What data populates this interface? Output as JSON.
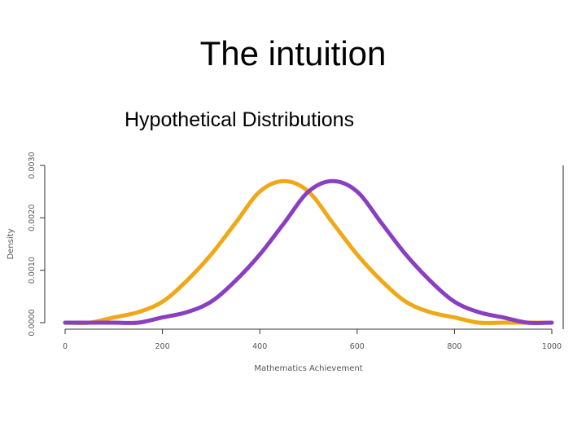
{
  "page": {
    "title": "The intuition"
  },
  "chart_data": {
    "type": "line",
    "title": "Hypothetical Distributions",
    "xlabel": "Mathematics Achievement",
    "ylabel": "Density",
    "xlim": [
      0,
      1000
    ],
    "ylim": [
      0,
      0.003
    ],
    "x_ticks": [
      0,
      200,
      400,
      600,
      800,
      1000
    ],
    "x_tick_labels": [
      "0",
      "200",
      "400",
      "600",
      "800",
      "1000"
    ],
    "y_ticks": [
      0,
      0.001,
      0.002,
      0.003
    ],
    "y_tick_labels": [
      "0.0000",
      "0.0010",
      "0.0020",
      "0.0030"
    ],
    "grid": false,
    "series": [
      {
        "color": "#f0a818",
        "x": [
          0,
          50,
          100,
          150,
          200,
          250,
          300,
          350,
          400,
          450,
          500,
          550,
          600,
          650,
          700,
          750,
          800,
          850,
          900,
          950,
          1000
        ],
        "y": [
          0.0,
          0.0,
          0.0001,
          0.0002,
          0.0004,
          0.0008,
          0.0013,
          0.0019,
          0.0025,
          0.0027,
          0.0025,
          0.0019,
          0.0013,
          0.0008,
          0.0004,
          0.0002,
          0.0001,
          0.0,
          0.0,
          0.0,
          0.0
        ]
      },
      {
        "color": "#8a3fc2",
        "x": [
          0,
          50,
          100,
          150,
          200,
          250,
          300,
          350,
          400,
          450,
          500,
          550,
          600,
          650,
          700,
          750,
          800,
          850,
          900,
          950,
          1000
        ],
        "y": [
          0.0,
          0.0,
          0.0,
          0.0,
          0.0001,
          0.0002,
          0.0004,
          0.0008,
          0.0013,
          0.0019,
          0.0025,
          0.0027,
          0.0025,
          0.0019,
          0.0013,
          0.0008,
          0.0004,
          0.0002,
          0.0001,
          0.0,
          0.0
        ]
      }
    ]
  }
}
